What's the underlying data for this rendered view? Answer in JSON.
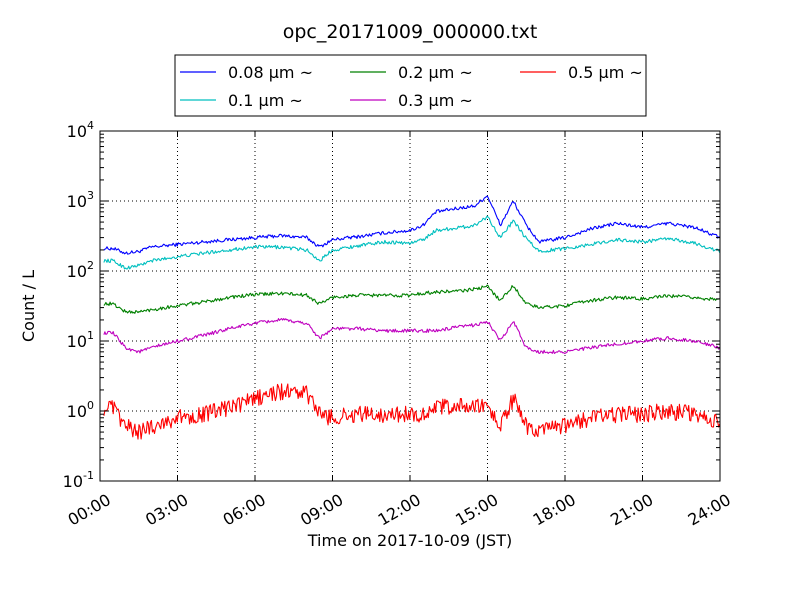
{
  "chart_data": {
    "type": "line",
    "title": "opc_20171009_000000.txt",
    "xlabel": "Time on 2017-10-09 (JST)",
    "ylabel": "Count / L",
    "y_scale": "log",
    "ylim": [
      0.1,
      10000
    ],
    "xlim": [
      "00:00",
      "24:00"
    ],
    "grid": true,
    "legend_position": "top",
    "x_ticks": [
      "00:00",
      "03:00",
      "06:00",
      "09:00",
      "12:00",
      "15:00",
      "18:00",
      "21:00",
      "24:00"
    ],
    "y_ticks": [
      {
        "base": "10",
        "exp": "-1",
        "value": 0.1
      },
      {
        "base": "10",
        "exp": "0",
        "value": 1
      },
      {
        "base": "10",
        "exp": "1",
        "value": 10
      },
      {
        "base": "10",
        "exp": "2",
        "value": 100
      },
      {
        "base": "10",
        "exp": "3",
        "value": 1000
      },
      {
        "base": "10",
        "exp": "4",
        "value": 10000
      }
    ],
    "x_hours": [
      0.5,
      1,
      1.5,
      2,
      3,
      4,
      5,
      6,
      7,
      8,
      8.5,
      9,
      10,
      11,
      12,
      12.5,
      13,
      14,
      14.5,
      15,
      15.5,
      16,
      16.5,
      17,
      18,
      19,
      20,
      21,
      22,
      23,
      24
    ],
    "series": [
      {
        "name": "0.08 µm ~",
        "color": "#0000ff",
        "values": [
          210,
          180,
          190,
          220,
          240,
          260,
          280,
          300,
          320,
          300,
          220,
          280,
          310,
          350,
          380,
          450,
          700,
          800,
          850,
          1200,
          450,
          1000,
          450,
          260,
          300,
          400,
          480,
          420,
          480,
          420,
          300
        ]
      },
      {
        "name": "0.1 µm ~",
        "color": "#00bfbf",
        "values": [
          140,
          110,
          120,
          140,
          160,
          180,
          200,
          220,
          220,
          200,
          140,
          200,
          230,
          260,
          250,
          280,
          380,
          420,
          450,
          600,
          300,
          520,
          290,
          190,
          210,
          240,
          280,
          260,
          290,
          250,
          190
        ]
      },
      {
        "name": "0.2 µm ~",
        "color": "#008000",
        "values": [
          34,
          26,
          26,
          28,
          32,
          36,
          42,
          46,
          48,
          45,
          34,
          42,
          45,
          45,
          45,
          48,
          50,
          52,
          55,
          60,
          38,
          62,
          34,
          30,
          32,
          38,
          42,
          40,
          44,
          42,
          38
        ]
      },
      {
        "name": "0.3 µm ~",
        "color": "#bf00bf",
        "values": [
          13,
          8,
          7,
          8,
          10,
          12,
          15,
          18,
          20,
          18,
          11,
          15,
          15,
          14,
          14,
          14,
          14,
          16,
          17,
          19,
          10,
          19,
          8,
          7,
          7,
          8,
          9,
          10,
          11,
          10,
          8
        ]
      },
      {
        "name": "0.5 µm ~",
        "color": "#ff0000",
        "values": [
          1.1,
          0.6,
          0.5,
          0.6,
          0.8,
          0.9,
          1.1,
          1.5,
          1.9,
          1.8,
          0.9,
          0.8,
          0.9,
          0.9,
          0.9,
          0.9,
          1.1,
          1.2,
          1.1,
          1.2,
          0.6,
          1.5,
          0.6,
          0.5,
          0.6,
          0.8,
          0.9,
          0.9,
          1.0,
          0.9,
          0.7
        ]
      }
    ]
  }
}
